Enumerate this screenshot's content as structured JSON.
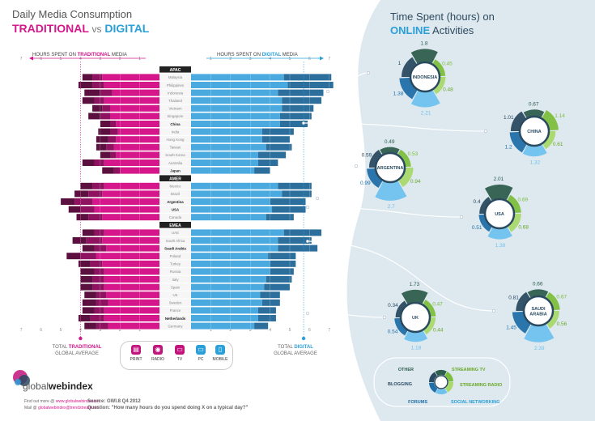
{
  "header": {
    "title_line1": "Daily Media Consumption",
    "title_traditional": "TRADITIONAL",
    "title_vs": "vs",
    "title_digital": "DIGITAL",
    "left_header_prefix": "HOURS SPENT ON ",
    "left_header_accent": "TRADITIONAL",
    "left_header_suffix": " MEDIA",
    "right_header_prefix": "HOURS SPENT ON ",
    "right_header_accent": "DIGITAL",
    "right_header_suffix": " MEDIA"
  },
  "right_title": {
    "line1": "Time Spent (hours) on",
    "accent": "ONLINE",
    "rest": " Activities"
  },
  "averages": {
    "traditional": [
      "TOTAL ",
      "TRADITIONAL",
      "GLOBAL AVERAGE"
    ],
    "digital": [
      "TOTAL ",
      "DIGITAL",
      "GLOBAL AVERAGE"
    ]
  },
  "legend": [
    {
      "label": "PRINT",
      "icon": "print-icon",
      "color": "#c2147d",
      "glyph": "▤"
    },
    {
      "label": "RADIO",
      "icon": "radio-icon",
      "color": "#c2147d",
      "glyph": "◉"
    },
    {
      "label": "TV",
      "icon": "tv-icon",
      "color": "#c2147d",
      "glyph": "▭"
    },
    {
      "label": "PC",
      "icon": "pc-icon",
      "color": "#2a9fd8",
      "glyph": "▭"
    },
    {
      "label": "MOBILE",
      "icon": "mobile-icon",
      "color": "#2a9fd8",
      "glyph": "▯"
    }
  ],
  "footer": {
    "brand_light": "global",
    "brand_bold": "webindex",
    "find_prefix": "Find out more @ ",
    "find_link": "www.globalwebindex.net",
    "mail_prefix": "Mail @ ",
    "mail_link": "globalwebindex@trendstream.net",
    "source_label": "Source:",
    "source": "GWI.8 Q4 2012",
    "question_label": "Question:",
    "question": "\"How many hours do you spend doing X on a typical day?\""
  },
  "donut_legend": {
    "other": "OTHER",
    "blogging": "BLOGGING",
    "forums": "FORUMS",
    "streaming_tv": "STREAMING TV",
    "streaming_radio": "STREAMING RADIO",
    "social_networking": "SOCIAL NETWORKING"
  },
  "colors": {
    "print": "#5c1040",
    "radio": "#8e1260",
    "tv": "#d6168b",
    "pc": "#4aaae0",
    "mobile": "#2c6f9c",
    "other": "#2e5e4c",
    "streaming_tv": "#7cbf3c",
    "streaming_radio": "#a8d86a",
    "social_networking": "#6fc2ee",
    "forums": "#1f6fa8",
    "blogging": "#2a4a60",
    "panel": "#dde8ef"
  },
  "chart_data": [
    {
      "type": "bar",
      "title": "Daily Media Consumption TRADITIONAL vs DIGITAL",
      "xlabel_left": "HOURS SPENT ON TRADITIONAL MEDIA",
      "xlabel_right": "HOURS SPENT ON DIGITAL MEDIA",
      "xlim": [
        0,
        7
      ],
      "ticks": [
        1,
        2,
        3,
        4,
        5,
        6,
        7
      ],
      "traditional_global_average": 4.0,
      "digital_global_average": 5.7,
      "groups": [
        {
          "name": "APAC",
          "countries": [
            {
              "name": "Malaysia",
              "bold": false,
              "trad": [
                0.5,
                0.5,
                2.9
              ],
              "dig": [
                4.7,
                2.4
              ]
            },
            {
              "name": "Philippines",
              "bold": false,
              "trad": [
                0.7,
                0.6,
                2.8
              ],
              "dig": [
                4.9,
                2.3
              ]
            },
            {
              "name": "Indonesia",
              "bold": false,
              "trad": [
                0.8,
                0.6,
                2.4
              ],
              "dig": [
                4.4,
                2.3
              ]
            },
            {
              "name": "Thailand",
              "bold": false,
              "trad": [
                0.6,
                0.5,
                2.8
              ],
              "dig": [
                4.6,
                2.0
              ]
            },
            {
              "name": "Vietnam",
              "bold": false,
              "trad": [
                0.5,
                0.4,
                2.5
              ],
              "dig": [
                4.6,
                1.6
              ]
            },
            {
              "name": "Singapore",
              "bold": false,
              "trad": [
                0.6,
                0.5,
                2.5
              ],
              "dig": [
                4.5,
                1.6
              ]
            },
            {
              "name": "China",
              "bold": true,
              "trad": [
                0.5,
                0.3,
                2.2
              ],
              "dig": [
                4.5,
                1.4
              ]
            },
            {
              "name": "India",
              "bold": false,
              "trad": [
                0.6,
                0.4,
                2.1
              ],
              "dig": [
                3.6,
                1.6
              ]
            },
            {
              "name": "Hong Kong",
              "bold": false,
              "trad": [
                0.6,
                0.4,
                2.2
              ],
              "dig": [
                3.6,
                1.4
              ]
            },
            {
              "name": "Taiwan",
              "bold": false,
              "trad": [
                0.5,
                0.4,
                2.3
              ],
              "dig": [
                3.8,
                1.3
              ]
            },
            {
              "name": "South Korea",
              "bold": false,
              "trad": [
                0.5,
                0.3,
                2.2
              ],
              "dig": [
                3.4,
                1.4
              ]
            },
            {
              "name": "Australia",
              "bold": false,
              "trad": [
                0.6,
                0.5,
                2.8
              ],
              "dig": [
                3.4,
                1.0
              ]
            },
            {
              "name": "Japan",
              "bold": true,
              "trad": [
                0.6,
                0.3,
                2.0
              ],
              "dig": [
                3.2,
                0.8
              ]
            }
          ]
        },
        {
          "name": "AMER",
          "countries": [
            {
              "name": "Mexico",
              "bold": false,
              "trad": [
                0.6,
                0.6,
                2.8
              ],
              "dig": [
                4.4,
                1.7
              ]
            },
            {
              "name": "Brazil",
              "bold": false,
              "trad": [
                0.7,
                0.7,
                2.9
              ],
              "dig": [
                4.6,
                1.5
              ]
            },
            {
              "name": "Argentina",
              "bold": true,
              "trad": [
                0.7,
                0.9,
                3.4
              ],
              "dig": [
                4.0,
                1.8
              ]
            },
            {
              "name": "USA",
              "bold": true,
              "trad": [
                0.6,
                0.7,
                3.3
              ],
              "dig": [
                4.1,
                1.7
              ]
            },
            {
              "name": "Canada",
              "bold": false,
              "trad": [
                0.6,
                0.7,
                2.9
              ],
              "dig": [
                3.8,
                1.4
              ]
            }
          ]
        },
        {
          "name": "EMEA",
          "countries": [
            {
              "name": "UAE",
              "bold": false,
              "trad": [
                0.6,
                0.5,
                2.8
              ],
              "dig": [
                4.7,
                1.9
              ]
            },
            {
              "name": "South Africa",
              "bold": false,
              "trad": [
                0.7,
                0.8,
                2.9
              ],
              "dig": [
                4.4,
                1.7
              ]
            },
            {
              "name": "Saudi Arabia",
              "bold": true,
              "trad": [
                0.6,
                0.6,
                2.7
              ],
              "dig": [
                4.4,
                2.0
              ]
            },
            {
              "name": "Poland",
              "bold": false,
              "trad": [
                0.7,
                0.8,
                3.2
              ],
              "dig": [
                3.9,
                1.4
              ]
            },
            {
              "name": "Turkey",
              "bold": false,
              "trad": [
                0.6,
                0.6,
                2.9
              ],
              "dig": [
                4.0,
                1.3
              ]
            },
            {
              "name": "Russia",
              "bold": false,
              "trad": [
                0.7,
                0.5,
                2.8
              ],
              "dig": [
                4.0,
                1.2
              ]
            },
            {
              "name": "Italy",
              "bold": false,
              "trad": [
                0.6,
                0.6,
                2.8
              ],
              "dig": [
                3.8,
                1.3
              ]
            },
            {
              "name": "Spain",
              "bold": false,
              "trad": [
                0.6,
                0.6,
                2.8
              ],
              "dig": [
                3.7,
                1.3
              ]
            },
            {
              "name": "UK",
              "bold": false,
              "trad": [
                0.6,
                0.5,
                2.7
              ],
              "dig": [
                3.5,
                1.0
              ]
            },
            {
              "name": "Sweden",
              "bold": false,
              "trad": [
                0.7,
                0.6,
                2.6
              ],
              "dig": [
                3.6,
                0.9
              ]
            },
            {
              "name": "France",
              "bold": false,
              "trad": [
                0.6,
                0.5,
                2.8
              ],
              "dig": [
                3.4,
                0.9
              ]
            },
            {
              "name": "Netherlands",
              "bold": true,
              "trad": [
                0.6,
                0.7,
                2.8
              ],
              "dig": [
                3.4,
                0.9
              ]
            },
            {
              "name": "Germany",
              "bold": false,
              "trad": [
                0.6,
                0.6,
                2.6
              ],
              "dig": [
                3.2,
                0.7
              ]
            }
          ]
        }
      ]
    },
    {
      "type": "pie",
      "title": "Time Spent (hours) on ONLINE Activities",
      "segments": [
        "Other",
        "Streaming TV",
        "Streaming Radio",
        "Social Networking",
        "Forums",
        "Blogging"
      ],
      "countries": [
        {
          "name": "INDONESIA",
          "values": [
            1.8,
            0.45,
            0.48,
            2.21,
            1.38,
            1
          ]
        },
        {
          "name": "CHINA",
          "values": [
            0.67,
            1.14,
            0.61,
            1.32,
            1.2,
            1.01
          ]
        },
        {
          "name": "ARGENTINA",
          "values": [
            0.49,
            0.53,
            0.94,
            2.7,
            0.99,
            0.59
          ]
        },
        {
          "name": "USA",
          "values": [
            2.01,
            0.69,
            0.68,
            1.38,
            0.51,
            0.4
          ]
        },
        {
          "name": "UK",
          "values": [
            1.73,
            0.47,
            0.44,
            1.18,
            0.54,
            0.34
          ]
        },
        {
          "name": "SAUDI ARABIA",
          "values": [
            0.66,
            0.67,
            0.56,
            2.39,
            1.45,
            0.81
          ]
        }
      ]
    }
  ]
}
